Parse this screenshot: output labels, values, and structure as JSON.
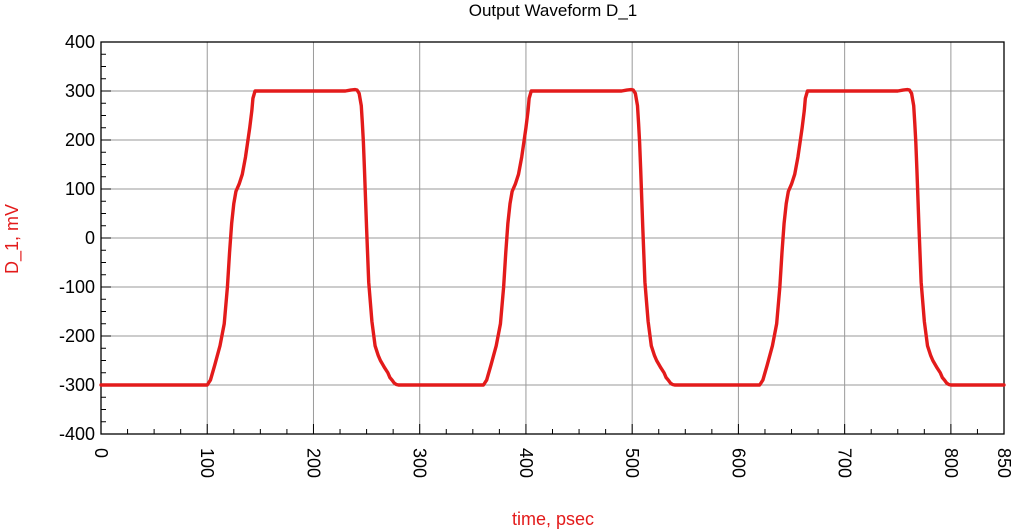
{
  "chart_data": {
    "type": "line",
    "title": "Output Waveform D_1",
    "xlabel": "time, psec",
    "ylabel": "D_1, mV",
    "xlim": [
      0,
      850
    ],
    "ylim": [
      -400,
      400
    ],
    "x_ticks": [
      0,
      100,
      200,
      300,
      400,
      500,
      600,
      700,
      800,
      850
    ],
    "y_ticks": [
      400,
      300,
      200,
      100,
      0,
      -100,
      -200,
      -300,
      -400
    ],
    "x_tick_labels": [
      "0",
      "100",
      "200",
      "300",
      "400",
      "500",
      "600",
      "700",
      "800",
      "850"
    ],
    "y_tick_labels": [
      "400",
      "300",
      "200",
      "100",
      "0",
      "-100",
      "-200",
      "-300",
      "-400"
    ],
    "grid": true,
    "colors": {
      "series": "#e31b1b",
      "axis_label": "#e31b1b",
      "grid": "#9a9a9a",
      "frame": "#000000"
    },
    "series": [
      {
        "x": [
          0,
          100,
          103,
          107,
          112,
          116,
          119,
          121,
          123,
          125,
          127,
          130,
          133,
          136,
          138,
          140,
          142,
          143,
          145,
          150,
          200,
          230,
          235,
          239,
          241,
          243,
          245,
          246,
          247,
          248,
          250,
          252,
          255,
          258,
          261,
          263,
          267,
          270,
          272,
          274,
          276,
          278,
          280,
          300,
          355,
          360,
          363,
          367,
          372,
          376,
          379,
          381,
          383,
          385,
          387,
          390,
          393,
          396,
          398,
          400,
          402,
          403,
          405,
          410,
          460,
          490,
          495,
          499,
          501,
          503,
          505,
          506,
          507,
          508,
          510,
          512,
          515,
          518,
          521,
          523,
          527,
          530,
          532,
          534,
          536,
          538,
          540,
          560,
          615,
          620,
          623,
          627,
          632,
          636,
          639,
          641,
          643,
          645,
          647,
          650,
          653,
          656,
          658,
          660,
          662,
          663,
          665,
          670,
          720,
          750,
          755,
          759,
          761,
          763,
          765,
          766,
          767,
          768,
          770,
          772,
          775,
          778,
          781,
          783,
          787,
          790,
          792,
          794,
          796,
          798,
          800,
          850
        ],
        "y": [
          -300,
          -300,
          -290,
          -260,
          -220,
          -175,
          -100,
          -30,
          30,
          70,
          95,
          110,
          130,
          165,
          195,
          225,
          260,
          285,
          300,
          300,
          300,
          300,
          302,
          303,
          302,
          295,
          270,
          235,
          195,
          140,
          20,
          -90,
          -170,
          -220,
          -240,
          -250,
          -265,
          -275,
          -285,
          -290,
          -296,
          -299,
          -300,
          -300,
          -300,
          -300,
          -290,
          -260,
          -220,
          -175,
          -100,
          -30,
          30,
          70,
          95,
          110,
          130,
          165,
          195,
          225,
          260,
          285,
          300,
          300,
          300,
          300,
          302,
          303,
          302,
          295,
          270,
          235,
          195,
          140,
          20,
          -90,
          -170,
          -220,
          -240,
          -250,
          -265,
          -275,
          -285,
          -290,
          -296,
          -299,
          -300,
          -300,
          -300,
          -300,
          -290,
          -260,
          -220,
          -175,
          -100,
          -30,
          30,
          70,
          95,
          110,
          130,
          165,
          195,
          225,
          260,
          285,
          300,
          300,
          300,
          300,
          302,
          303,
          302,
          295,
          270,
          235,
          195,
          140,
          20,
          -90,
          -170,
          -220,
          -240,
          -250,
          -265,
          -275,
          -285,
          -290,
          -296,
          -299,
          -300,
          -300
        ]
      }
    ]
  }
}
